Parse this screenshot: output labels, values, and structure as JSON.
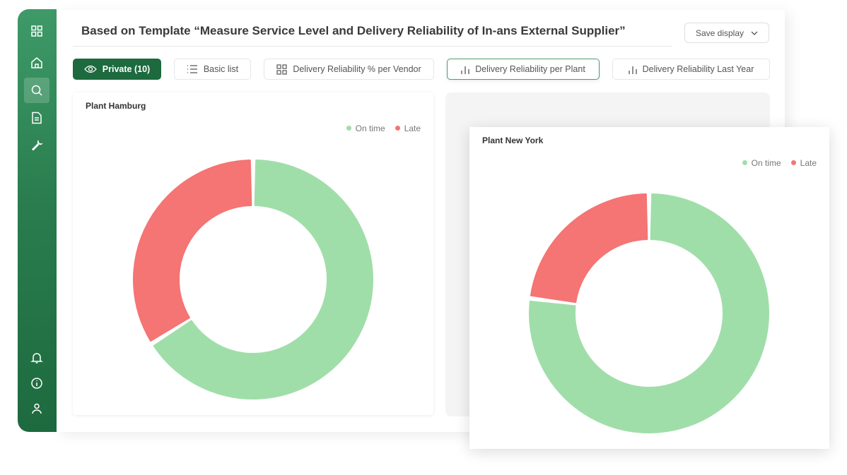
{
  "sidebar": {
    "items": [
      {
        "icon": "grid-icon"
      },
      {
        "icon": "home-icon"
      },
      {
        "icon": "search-icon",
        "active": true
      },
      {
        "icon": "document-icon"
      },
      {
        "icon": "wrench-icon"
      }
    ],
    "bottom": [
      {
        "icon": "bell-icon"
      },
      {
        "icon": "info-icon"
      },
      {
        "icon": "user-icon"
      }
    ]
  },
  "header": {
    "title": "Based on Template “Measure Service Level and Delivery Reliability of In-ans External Supplier”",
    "save_label": "Save display"
  },
  "tabs": [
    {
      "label": "Private (10)",
      "icon": "eye-icon"
    },
    {
      "label": "Basic list",
      "icon": "list-icon"
    },
    {
      "label": "Delivery Reliability % per Vendor",
      "icon": "grid-icon"
    },
    {
      "label": "Delivery Reliability per Plant",
      "icon": "bar-chart-icon",
      "selected": true
    },
    {
      "label": "Delivery Reliability Last Year",
      "icon": "bar-chart-icon"
    }
  ],
  "colors": {
    "on_time": "#a0dea9",
    "late": "#f57474",
    "brand": "#1d6a3f"
  },
  "chart_data": [
    {
      "type": "pie",
      "title": "Plant Hamburg",
      "legend": [
        "On time",
        "Late"
      ],
      "legend_position": "top-right",
      "series": [
        {
          "name": "On time",
          "value": 66
        },
        {
          "name": "Late",
          "value": 34
        }
      ]
    },
    {
      "type": "pie",
      "title": "Plant New York",
      "legend": [
        "On time",
        "Late"
      ],
      "legend_position": "top-right",
      "series": [
        {
          "name": "On time",
          "value": 77
        },
        {
          "name": "Late",
          "value": 23
        }
      ]
    }
  ]
}
